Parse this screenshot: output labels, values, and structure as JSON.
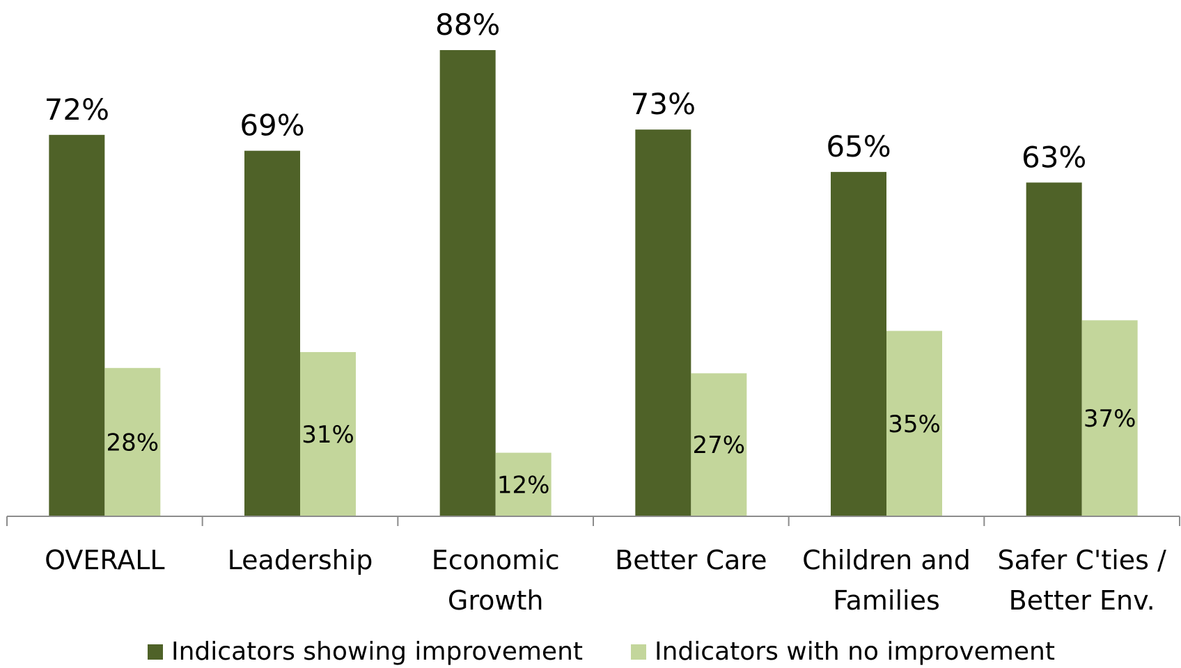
{
  "colors": {
    "improvement": "#4F6228",
    "no_improvement": "#C3D69B",
    "axis": "#8C8C8C",
    "text": "#000000"
  },
  "chart_data": {
    "type": "bar",
    "categories": [
      [
        "OVERALL"
      ],
      [
        "Leadership"
      ],
      [
        "Economic",
        "Growth"
      ],
      [
        "Better Care"
      ],
      [
        "Children and",
        "Families"
      ],
      [
        "Safer C'ties /",
        "Better Env."
      ]
    ],
    "series": [
      {
        "name": "Indicators showing improvement",
        "values": [
          72,
          69,
          88,
          73,
          65,
          63
        ],
        "labels": [
          "72%",
          "69%",
          "88%",
          "73%",
          "65%",
          "63%"
        ]
      },
      {
        "name": "Indicators with no improvement",
        "values": [
          28,
          31,
          12,
          27,
          35,
          37
        ],
        "labels": [
          "28%",
          "31%",
          "12%",
          "27%",
          "35%",
          "37%"
        ]
      }
    ],
    "ylim": [
      0,
      88
    ],
    "grid": false,
    "legend_position": "bottom",
    "data_labels": {
      "improvement": "outside-end",
      "no_improvement": "inside"
    }
  }
}
